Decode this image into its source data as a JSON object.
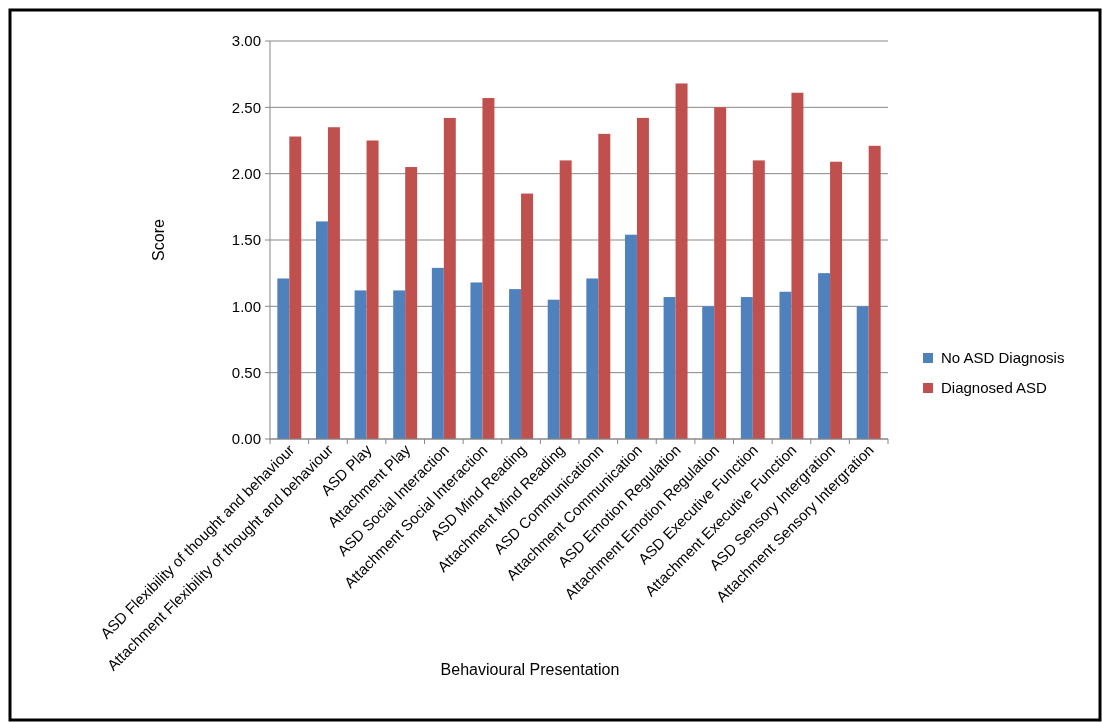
{
  "chart_data": {
    "type": "bar",
    "xlabel": "Behavioural Presentation",
    "ylabel": "Score",
    "categories": [
      "ASD Flexibility of thought and behaviour",
      "Attachment Flexibility of thought and behaviour",
      "ASD Play",
      "Attachment Play",
      "ASD Social Interaction",
      "Attachment Social Interaction",
      "ASD Mind Reading",
      "Attachment Mind Reading",
      "ASD Communicationn",
      "Attachment Communication",
      "ASD Emotion Regulation",
      "Attachment Emotion Regulation",
      "ASD Executive Function",
      "Attachment Executive Function",
      "ASD Sensory Intergration",
      "Attachment Sensory Intergration"
    ],
    "series": [
      {
        "name": "No ASD Diagnosis",
        "color": "#4f81bd",
        "values": [
          1.21,
          1.64,
          1.12,
          1.12,
          1.29,
          1.18,
          1.13,
          1.05,
          1.21,
          1.54,
          1.07,
          1.0,
          1.07,
          1.11,
          1.25,
          1.0
        ]
      },
      {
        "name": "Diagnosed ASD",
        "color": "#c0504d",
        "values": [
          2.28,
          2.35,
          2.25,
          2.05,
          2.42,
          2.57,
          1.85,
          2.1,
          2.3,
          2.42,
          2.68,
          2.5,
          2.1,
          2.61,
          2.09,
          2.21
        ]
      }
    ],
    "ylim": [
      0,
      3
    ],
    "yticks": [
      {
        "value": 0,
        "label": "0.00"
      },
      {
        "value": 0.5,
        "label": "0.50"
      },
      {
        "value": 1,
        "label": "1.00"
      },
      {
        "value": 1.5,
        "label": "1.50"
      },
      {
        "value": 2,
        "label": "2.00"
      },
      {
        "value": 2.5,
        "label": "2.50"
      },
      {
        "value": 3,
        "label": "3.00"
      }
    ],
    "grid": "y",
    "legend": "right"
  }
}
